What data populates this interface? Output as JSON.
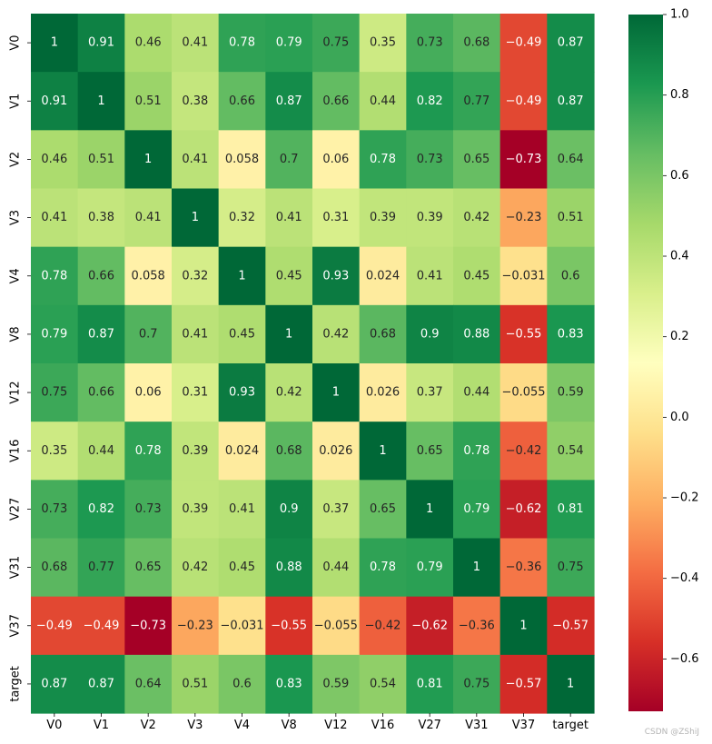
{
  "chart_data": {
    "type": "heatmap",
    "title": "",
    "labels": [
      "V0",
      "V1",
      "V2",
      "V3",
      "V4",
      "V8",
      "V12",
      "V16",
      "V27",
      "V31",
      "V37",
      "target"
    ],
    "matrix": [
      [
        1,
        0.91,
        0.46,
        0.41,
        0.78,
        0.79,
        0.75,
        0.35,
        0.73,
        0.68,
        -0.49,
        0.87
      ],
      [
        0.91,
        1,
        0.51,
        0.38,
        0.66,
        0.87,
        0.66,
        0.44,
        0.82,
        0.77,
        -0.49,
        0.87
      ],
      [
        0.46,
        0.51,
        1,
        0.41,
        0.058,
        0.7,
        0.06,
        0.78,
        0.73,
        0.65,
        -0.73,
        0.64
      ],
      [
        0.41,
        0.38,
        0.41,
        1,
        0.32,
        0.41,
        0.31,
        0.39,
        0.39,
        0.42,
        -0.23,
        0.51
      ],
      [
        0.78,
        0.66,
        0.058,
        0.32,
        1,
        0.45,
        0.93,
        0.024,
        0.41,
        0.45,
        -0.031,
        0.6
      ],
      [
        0.79,
        0.87,
        0.7,
        0.41,
        0.45,
        1,
        0.42,
        0.68,
        0.9,
        0.88,
        -0.55,
        0.83
      ],
      [
        0.75,
        0.66,
        0.06,
        0.31,
        0.93,
        0.42,
        1,
        0.026,
        0.37,
        0.44,
        -0.055,
        0.59
      ],
      [
        0.35,
        0.44,
        0.78,
        0.39,
        0.024,
        0.68,
        0.026,
        1,
        0.65,
        0.78,
        -0.42,
        0.54
      ],
      [
        0.73,
        0.82,
        0.73,
        0.39,
        0.41,
        0.9,
        0.37,
        0.65,
        1,
        0.79,
        -0.62,
        0.81
      ],
      [
        0.68,
        0.77,
        0.65,
        0.42,
        0.45,
        0.88,
        0.44,
        0.78,
        0.79,
        1,
        -0.36,
        0.75
      ],
      [
        -0.49,
        -0.49,
        -0.73,
        -0.23,
        -0.031,
        -0.55,
        -0.055,
        -0.42,
        -0.62,
        -0.36,
        1,
        -0.57
      ],
      [
        0.87,
        0.87,
        0.64,
        0.51,
        0.6,
        0.83,
        0.59,
        0.54,
        0.81,
        0.75,
        -0.57,
        1
      ]
    ],
    "colormap": "RdYlGn",
    "vmin": -0.73,
    "vmax": 1.0,
    "colorbar_ticks": [
      1.0,
      0.8,
      0.6,
      0.4,
      0.2,
      0.0,
      -0.2,
      -0.4,
      -0.6
    ],
    "colorbar_tick_labels": [
      "1.0",
      "0.8",
      "0.6",
      "0.4",
      "0.2",
      "0.0",
      "−0.2",
      "−0.4",
      "−0.6"
    ],
    "annotations": true,
    "xlabel": "",
    "ylabel": ""
  },
  "watermark": "CSDN @ZShiJ"
}
